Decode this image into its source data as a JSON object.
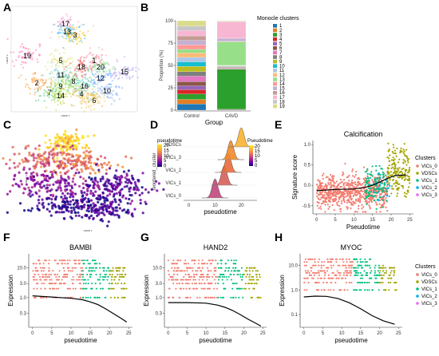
{
  "figure": {
    "panels": {
      "A": {
        "label": "A",
        "clusters": [
          "17",
          "13",
          "3",
          "19",
          "5",
          "1",
          "18",
          "20",
          "15",
          "11",
          "8",
          "12",
          "2",
          "7",
          "9",
          "16",
          "10",
          "14",
          "4",
          "6"
        ],
        "x_label": "UMAP 1",
        "y_label": "UMAP 2"
      },
      "B": {
        "label": "B"
      },
      "C": {
        "label": "C",
        "legend_title": "pseudotime",
        "legend_ticks": [
          "20",
          "15",
          "10",
          "5",
          "0"
        ],
        "x_label": "UMAP 1",
        "y_label": "UMAP 2"
      },
      "D": {
        "label": "D"
      },
      "E": {
        "label": "E"
      },
      "F": {
        "label": "F"
      },
      "G": {
        "label": "G"
      },
      "H": {
        "label": "H"
      }
    },
    "colors": {
      "VICs_0": "#f37c6f",
      "VDSCs": "#a3a500",
      "VICs_1": "#00bf7d",
      "VICs_2": "#00b0f6",
      "VICs_3": "#e76bf3",
      "curve": "#000000"
    }
  },
  "chart_data": [
    {
      "type": "bar",
      "panel": "B",
      "stacked": true,
      "categories": [
        "Control",
        "CAVD"
      ],
      "xlabel": "Group",
      "ylabel": "Proportion (%)",
      "ylim": [
        0,
        100
      ],
      "yticks": [
        "0",
        "25",
        "50",
        "75",
        "100"
      ],
      "legend_title": "Monocle clusters",
      "legend_position": "right",
      "series": [
        {
          "name": "1",
          "color": "#1f77b4",
          "values": [
            7,
            0.5
          ]
        },
        {
          "name": "2",
          "color": "#e67e22",
          "values": [
            5,
            0.5
          ]
        },
        {
          "name": "3",
          "color": "#2ca02c",
          "values": [
            6,
            46
          ]
        },
        {
          "name": "4",
          "color": "#d62728",
          "values": [
            5,
            0.5
          ]
        },
        {
          "name": "5",
          "color": "#9467bd",
          "values": [
            4,
            0.5
          ]
        },
        {
          "name": "6",
          "color": "#8c564b",
          "values": [
            5,
            0.5
          ]
        },
        {
          "name": "7",
          "color": "#e377c2",
          "values": [
            6,
            0.5
          ]
        },
        {
          "name": "8",
          "color": "#7f7f7f",
          "values": [
            5,
            0.5
          ]
        },
        {
          "name": "9",
          "color": "#bcbd22",
          "values": [
            6,
            0.5
          ]
        },
        {
          "name": "10",
          "color": "#17becf",
          "values": [
            5,
            0.5
          ]
        },
        {
          "name": "11",
          "color": "#aec7e8",
          "values": [
            5,
            0.5
          ]
        },
        {
          "name": "12",
          "color": "#ffbb78",
          "values": [
            5,
            0.5
          ]
        },
        {
          "name": "13",
          "color": "#98df8a",
          "values": [
            4,
            27
          ]
        },
        {
          "name": "14",
          "color": "#ff9896",
          "values": [
            5,
            0.5
          ]
        },
        {
          "name": "15",
          "color": "#c5b0d5",
          "values": [
            5,
            3
          ]
        },
        {
          "name": "16",
          "color": "#c49c94",
          "values": [
            5,
            0.5
          ]
        },
        {
          "name": "17",
          "color": "#f7b6d2",
          "values": [
            6,
            19
          ]
        },
        {
          "name": "18",
          "color": "#c7c7c7",
          "values": [
            5,
            0.5
          ]
        },
        {
          "name": "19",
          "color": "#dbdb8d",
          "values": [
            6,
            0.5
          ]
        }
      ]
    },
    {
      "type": "area",
      "panel": "D",
      "subtype": "ridgeline",
      "categories": [
        "VICs_0",
        "VICs_1",
        "VICs_2",
        "VICs_3",
        "VDSCs"
      ],
      "ridge_peaks": [
        10,
        13.5,
        15,
        16,
        20
      ],
      "xlabel": "pseudotime",
      "ylabel": "reordered_cluster",
      "xlim": [
        -2,
        26
      ],
      "xticks": [
        "0",
        "10",
        "20"
      ],
      "legend_title": "Pseudotime",
      "legend_ticks": [
        "20",
        "15",
        "10",
        "5",
        "0"
      ]
    },
    {
      "type": "scatter",
      "panel": "E",
      "title": "Calcification",
      "xlabel": "Pseudotime",
      "ylabel": "Signature score",
      "xlim": [
        -1,
        26
      ],
      "ylim": [
        -0.7,
        1.1
      ],
      "xticks": [
        "0",
        "5",
        "10",
        "15",
        "20",
        "25"
      ],
      "yticks": [
        "-0.5",
        "0.0",
        "0.5",
        "1.0"
      ],
      "legend_title": "Clusters",
      "legend": [
        "VICs_0",
        "VDSCs",
        "VICs_1",
        "VICs_2",
        "VICs_3"
      ],
      "trend": [
        [
          0,
          -0.13
        ],
        [
          5,
          -0.1
        ],
        [
          10,
          -0.09
        ],
        [
          13,
          -0.05
        ],
        [
          15,
          0.0
        ],
        [
          17,
          0.08
        ],
        [
          19,
          0.17
        ],
        [
          21,
          0.24
        ],
        [
          23,
          0.25
        ],
        [
          24,
          0.25
        ]
      ]
    },
    {
      "type": "scatter",
      "panel": "F",
      "title": "BAMBI",
      "xlabel": "pseudotime",
      "ylabel": "Expression",
      "ylog": true,
      "ylim": [
        0.1,
        30
      ],
      "yticks": [
        "0.3",
        "1.0",
        "3.0",
        "10.0"
      ],
      "xticks": [
        "0",
        "5",
        "10",
        "15",
        "20",
        "25"
      ],
      "trend": [
        [
          0,
          1.15
        ],
        [
          5,
          1.05
        ],
        [
          10,
          0.95
        ],
        [
          13,
          0.85
        ],
        [
          15,
          0.72
        ],
        [
          17,
          0.58
        ],
        [
          19,
          0.42
        ],
        [
          21,
          0.29
        ],
        [
          23,
          0.2
        ],
        [
          24.5,
          0.15
        ]
      ]
    },
    {
      "type": "scatter",
      "panel": "G",
      "title": "HAND2",
      "xlabel": "pseudotime",
      "ylabel": "Expression",
      "ylog": true,
      "ylim": [
        0.1,
        30
      ],
      "yticks": [
        "0.3",
        "1.0",
        "3.0",
        "10.0"
      ],
      "xticks": [
        "0",
        "5",
        "10",
        "15",
        "20",
        "25"
      ],
      "trend": [
        [
          0,
          0.68
        ],
        [
          5,
          0.68
        ],
        [
          10,
          0.65
        ],
        [
          13,
          0.56
        ],
        [
          15,
          0.47
        ],
        [
          17,
          0.37
        ],
        [
          19,
          0.27
        ],
        [
          21,
          0.19
        ],
        [
          23,
          0.14
        ],
        [
          24.5,
          0.11
        ]
      ]
    },
    {
      "type": "scatter",
      "panel": "H",
      "title": "MYOC",
      "xlabel": "pseudotime",
      "ylabel": "Expression",
      "ylog": true,
      "ylim": [
        0.03,
        30
      ],
      "yticks": [
        "0.1",
        "1.0",
        "10.0"
      ],
      "xticks": [
        "0",
        "5",
        "10",
        "15",
        "20",
        "25"
      ],
      "legend_title": "Clusters",
      "legend": [
        "VICs_0",
        "VDSCs",
        "VICs_1",
        "VICs_2",
        "VICs_3"
      ],
      "trend": [
        [
          0,
          0.52
        ],
        [
          3,
          0.56
        ],
        [
          6,
          0.55
        ],
        [
          9,
          0.45
        ],
        [
          12,
          0.3
        ],
        [
          15,
          0.17
        ],
        [
          18,
          0.09
        ],
        [
          21,
          0.055
        ],
        [
          24,
          0.04
        ]
      ]
    }
  ]
}
